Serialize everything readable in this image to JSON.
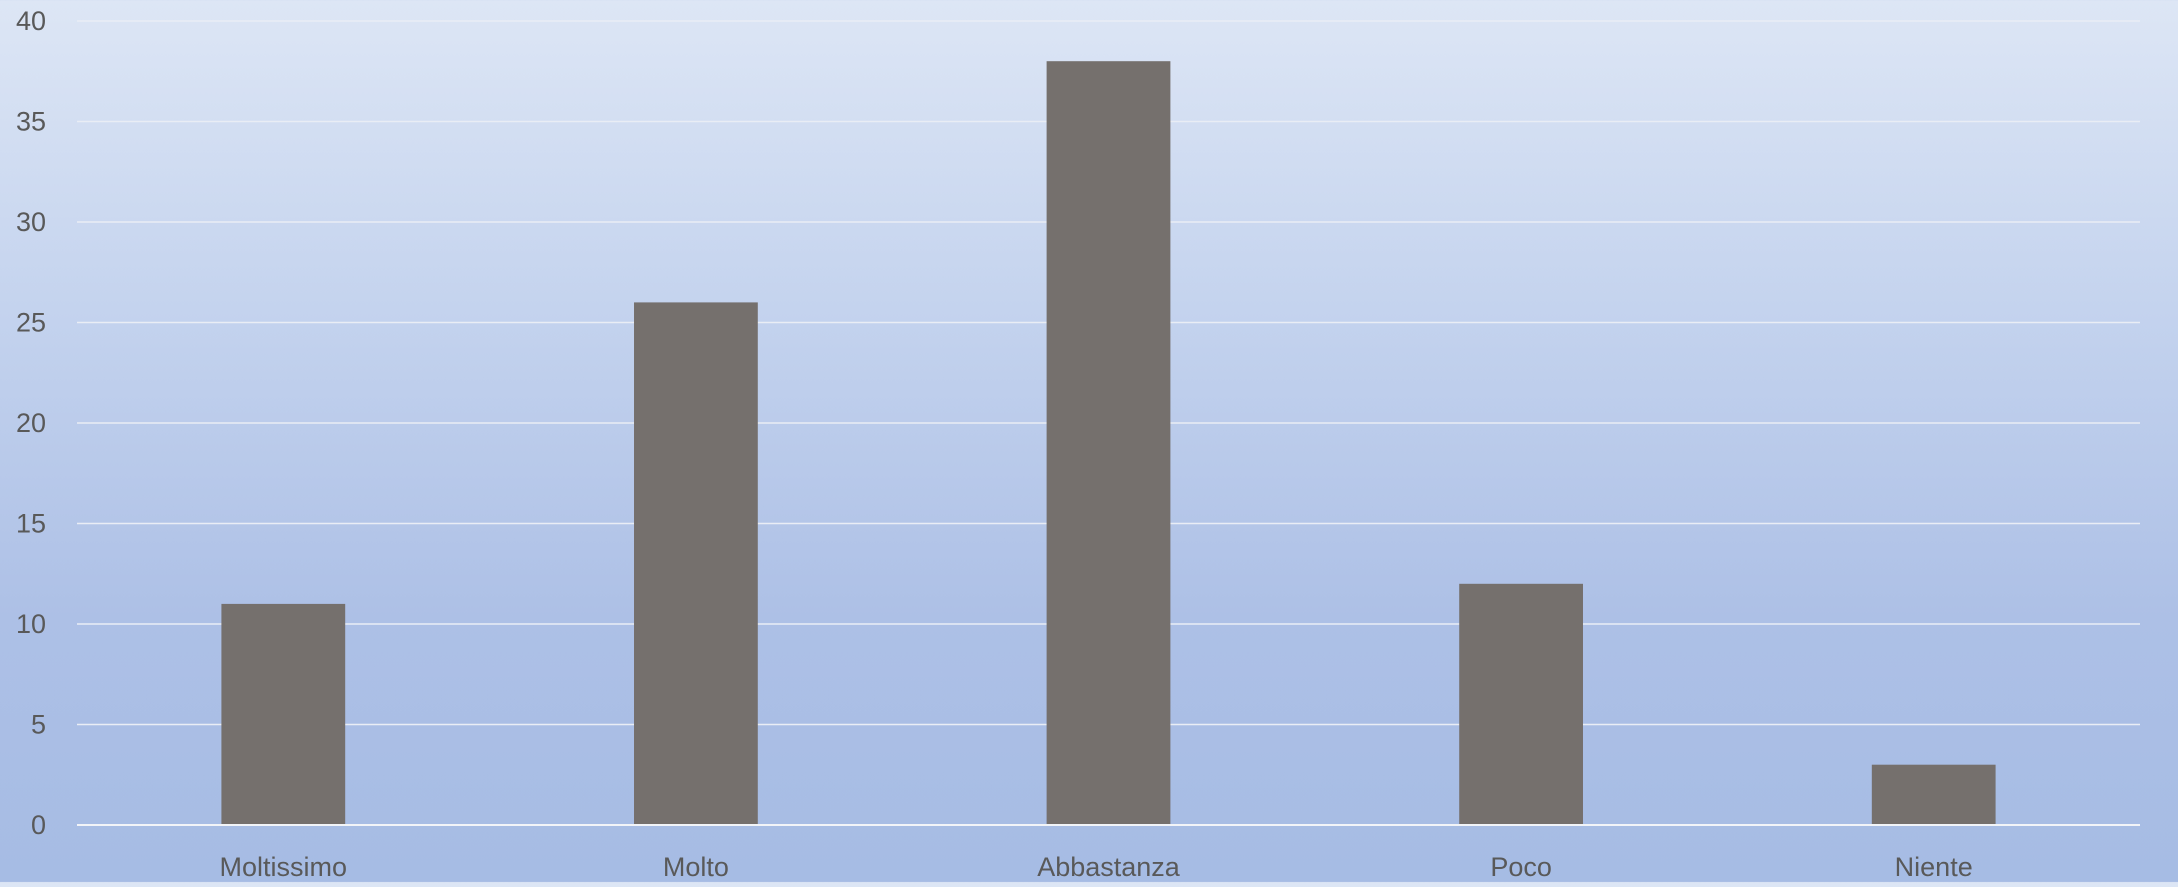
{
  "chart_data": {
    "type": "bar",
    "title": "",
    "xlabel": "",
    "ylabel": "",
    "categories": [
      "Moltissimo",
      "Molto",
      "Abbastanza",
      "Poco",
      "Niente"
    ],
    "values": [
      11,
      26,
      38,
      12,
      3
    ],
    "ylim": [
      0,
      40
    ],
    "yticks": [
      "0",
      "5",
      "10",
      "15",
      "20",
      "25",
      "30",
      "35",
      "40"
    ],
    "grid": true,
    "legend": "none",
    "colors": {
      "bar": "#75706d",
      "gridline": "#e9edf5",
      "axis_line": "#f2f4f8",
      "tick_label": "#595959"
    }
  }
}
